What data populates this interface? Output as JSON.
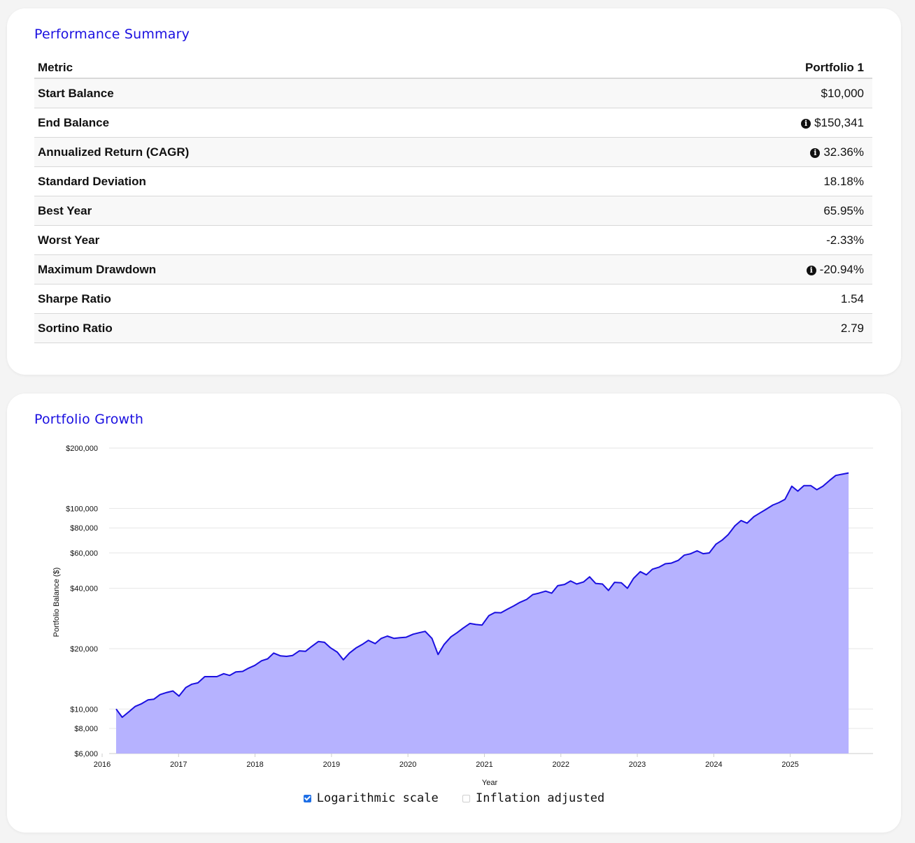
{
  "summary": {
    "title": "Performance Summary",
    "columns": [
      "Metric",
      "Portfolio 1"
    ],
    "rows": [
      {
        "label": "Start Balance",
        "value": "$10,000",
        "info": false
      },
      {
        "label": "End Balance",
        "value": "$150,341",
        "info": true
      },
      {
        "label": "Annualized Return (CAGR)",
        "value": "32.36%",
        "info": true
      },
      {
        "label": "Standard Deviation",
        "value": "18.18%",
        "info": false
      },
      {
        "label": "Best Year",
        "value": "65.95%",
        "info": false
      },
      {
        "label": "Worst Year",
        "value": "-2.33%",
        "info": false
      },
      {
        "label": "Maximum Drawdown",
        "value": "-20.94%",
        "info": true
      },
      {
        "label": "Sharpe Ratio",
        "value": "1.54",
        "info": false
      },
      {
        "label": "Sortino Ratio",
        "value": "2.79",
        "info": false
      }
    ]
  },
  "growth": {
    "title": "Portfolio Growth",
    "controls": {
      "log_label": "Logarithmic scale",
      "log_checked": true,
      "inflation_label": "Inflation adjusted",
      "inflation_checked": false
    }
  },
  "chart_data": {
    "type": "area",
    "title": "",
    "xlabel": "Year",
    "ylabel": "Portfolio Balance ($)",
    "y_scale": "log",
    "ylim": [
      6000,
      200000
    ],
    "xlim": [
      2016,
      2025.9
    ],
    "y_ticks": [
      6000,
      8000,
      10000,
      20000,
      40000,
      60000,
      80000,
      100000,
      200000
    ],
    "y_tick_labels": [
      "$6,000",
      "$8,000",
      "$10,000",
      "$20,000",
      "$40,000",
      "$60,000",
      "$80,000",
      "$100,000",
      "$200,000"
    ],
    "x_ticks": [
      2016,
      2017,
      2018,
      2019,
      2020,
      2021,
      2022,
      2023,
      2024,
      2025
    ],
    "x_tick_labels": [
      "2016",
      "2017",
      "2018",
      "2019",
      "2020",
      "2021",
      "2022",
      "2023",
      "2024",
      "2025"
    ],
    "grid": true,
    "colors": {
      "line": "#1a0fe0",
      "fill": "#b6b2ff"
    },
    "series": [
      {
        "values": [
          [
            2016.0,
            10000
          ],
          [
            2016.08,
            9100
          ],
          [
            2016.17,
            9700
          ],
          [
            2016.25,
            10300
          ],
          [
            2016.33,
            10600
          ],
          [
            2016.42,
            11100
          ],
          [
            2016.5,
            11200
          ],
          [
            2016.58,
            11800
          ],
          [
            2016.67,
            12100
          ],
          [
            2016.75,
            12300
          ],
          [
            2016.83,
            11600
          ],
          [
            2016.92,
            12800
          ],
          [
            2017.0,
            13300
          ],
          [
            2017.08,
            13500
          ],
          [
            2017.17,
            14500
          ],
          [
            2017.25,
            14500
          ],
          [
            2017.33,
            14500
          ],
          [
            2017.42,
            15000
          ],
          [
            2017.5,
            14700
          ],
          [
            2017.58,
            15300
          ],
          [
            2017.67,
            15400
          ],
          [
            2017.75,
            16000
          ],
          [
            2017.83,
            16500
          ],
          [
            2017.92,
            17400
          ],
          [
            2018.0,
            17800
          ],
          [
            2018.08,
            19000
          ],
          [
            2018.17,
            18400
          ],
          [
            2018.25,
            18300
          ],
          [
            2018.33,
            18500
          ],
          [
            2018.42,
            19500
          ],
          [
            2018.5,
            19400
          ],
          [
            2018.58,
            20500
          ],
          [
            2018.67,
            21700
          ],
          [
            2018.75,
            21500
          ],
          [
            2018.83,
            20200
          ],
          [
            2018.92,
            19200
          ],
          [
            2019.0,
            17600
          ],
          [
            2019.08,
            19000
          ],
          [
            2019.17,
            20200
          ],
          [
            2019.25,
            21000
          ],
          [
            2019.33,
            22000
          ],
          [
            2019.42,
            21200
          ],
          [
            2019.5,
            22500
          ],
          [
            2019.58,
            23100
          ],
          [
            2019.67,
            22500
          ],
          [
            2019.75,
            22700
          ],
          [
            2019.83,
            22800
          ],
          [
            2019.92,
            23600
          ],
          [
            2020.0,
            24000
          ],
          [
            2020.08,
            24400
          ],
          [
            2020.17,
            22500
          ],
          [
            2020.25,
            18700
          ],
          [
            2020.33,
            21000
          ],
          [
            2020.42,
            22900
          ],
          [
            2020.5,
            24000
          ],
          [
            2020.58,
            25300
          ],
          [
            2020.67,
            26700
          ],
          [
            2020.75,
            26400
          ],
          [
            2020.83,
            26200
          ],
          [
            2020.92,
            29200
          ],
          [
            2021.0,
            30300
          ],
          [
            2021.08,
            30200
          ],
          [
            2021.17,
            31500
          ],
          [
            2021.25,
            32700
          ],
          [
            2021.33,
            34000
          ],
          [
            2021.42,
            35200
          ],
          [
            2021.5,
            37200
          ],
          [
            2021.58,
            37800
          ],
          [
            2021.67,
            38700
          ],
          [
            2021.75,
            37800
          ],
          [
            2021.83,
            41200
          ],
          [
            2021.92,
            41800
          ],
          [
            2022.0,
            43500
          ],
          [
            2022.08,
            42000
          ],
          [
            2022.17,
            43000
          ],
          [
            2022.25,
            45600
          ],
          [
            2022.33,
            42300
          ],
          [
            2022.42,
            42000
          ],
          [
            2022.5,
            39000
          ],
          [
            2022.58,
            42800
          ],
          [
            2022.67,
            42600
          ],
          [
            2022.75,
            40000
          ],
          [
            2022.83,
            44800
          ],
          [
            2022.92,
            48400
          ],
          [
            2023.0,
            46700
          ],
          [
            2023.08,
            49800
          ],
          [
            2023.17,
            51000
          ],
          [
            2023.25,
            53000
          ],
          [
            2023.33,
            53400
          ],
          [
            2023.42,
            55100
          ],
          [
            2023.5,
            58500
          ],
          [
            2023.58,
            59400
          ],
          [
            2023.67,
            61500
          ],
          [
            2023.75,
            59500
          ],
          [
            2023.83,
            60000
          ],
          [
            2023.92,
            66400
          ],
          [
            2024.0,
            69500
          ],
          [
            2024.08,
            74000
          ],
          [
            2024.17,
            82000
          ],
          [
            2024.25,
            87000
          ],
          [
            2024.33,
            84500
          ],
          [
            2024.42,
            91000
          ],
          [
            2024.5,
            95000
          ],
          [
            2024.58,
            99000
          ],
          [
            2024.67,
            104000
          ],
          [
            2024.75,
            107000
          ],
          [
            2024.83,
            111000
          ],
          [
            2024.92,
            129000
          ],
          [
            2025.0,
            122000
          ],
          [
            2025.08,
            130000
          ],
          [
            2025.17,
            130000
          ],
          [
            2025.25,
            124000
          ],
          [
            2025.33,
            129000
          ],
          [
            2025.42,
            138000
          ],
          [
            2025.5,
            146000
          ],
          [
            2025.58,
            148000
          ],
          [
            2025.67,
            150341
          ]
        ]
      }
    ]
  }
}
